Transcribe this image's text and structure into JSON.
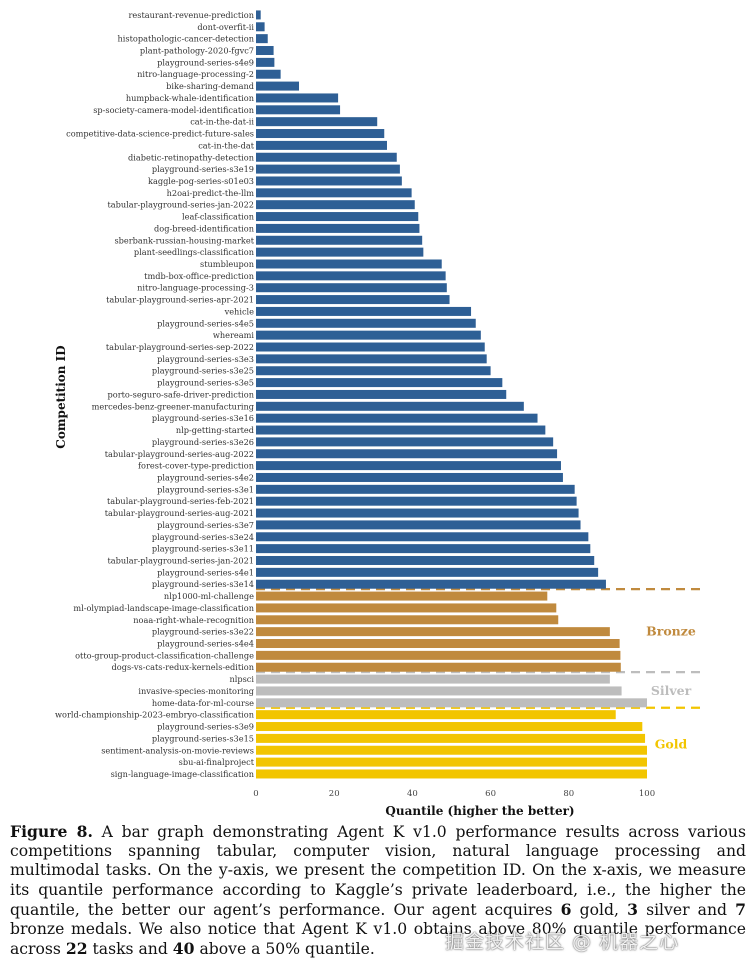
{
  "chart_data": {
    "type": "bar",
    "orientation": "horizontal",
    "xlabel": "Quantile (higher the better)",
    "ylabel": "Competition ID",
    "xlim": [
      0,
      100
    ],
    "xticks": [
      0,
      20,
      40,
      60,
      80,
      100
    ],
    "categories": [
      "restaurant-revenue-prediction",
      "dont-overfit-ii",
      "histopathologic-cancer-detection",
      "plant-pathology-2020-fgvc7",
      "playground-series-s4e9",
      "nitro-language-processing-2",
      "bike-sharing-demand",
      "humpback-whale-identification",
      "sp-society-camera-model-identification",
      "cat-in-the-dat-ii",
      "competitive-data-science-predict-future-sales",
      "cat-in-the-dat",
      "diabetic-retinopathy-detection",
      "playground-series-s3e19",
      "kaggle-pog-series-s01e03",
      "h2oai-predict-the-llm",
      "tabular-playground-series-jan-2022",
      "leaf-classification",
      "dog-breed-identification",
      "sberbank-russian-housing-market",
      "plant-seedlings-classification",
      "stumbleupon",
      "tmdb-box-office-prediction",
      "nitro-language-processing-3",
      "tabular-playground-series-apr-2021",
      "vehicle",
      "playground-series-s4e5",
      "whereami",
      "tabular-playground-series-sep-2022",
      "playground-series-s3e3",
      "playground-series-s3e25",
      "playground-series-s3e5",
      "porto-seguro-safe-driver-prediction",
      "mercedes-benz-greener-manufacturing",
      "playground-series-s3e16",
      "nlp-getting-started",
      "playground-series-s3e26",
      "tabular-playground-series-aug-2022",
      "forest-cover-type-prediction",
      "playground-series-s4e2",
      "playground-series-s3e1",
      "tabular-playground-series-feb-2021",
      "tabular-playground-series-aug-2021",
      "playground-series-s3e7",
      "playground-series-s3e24",
      "playground-series-s3e11",
      "tabular-playground-series-jan-2021",
      "playground-series-s4e1",
      "playground-series-s3e14",
      "nlp1000-ml-challenge",
      "ml-olympiad-landscape-image-classification",
      "noaa-right-whale-recognition",
      "playground-series-s3e22",
      "playground-series-s4e4",
      "otto-group-product-classification-challenge",
      "dogs-vs-cats-redux-kernels-edition",
      "nlpsci",
      "invasive-species-monitoring",
      "home-data-for-ml-course",
      "world-championship-2023-embryo-classification",
      "playground-series-s3e9",
      "playground-series-s3e15",
      "sentiment-analysis-on-movie-reviews",
      "sbu-ai-finalproject",
      "sign-language-image-classification"
    ],
    "values": [
      1.2,
      2.2,
      3.0,
      4.5,
      4.7,
      6.3,
      11.0,
      21.0,
      21.5,
      31.0,
      32.8,
      33.5,
      36.0,
      36.8,
      37.3,
      39.8,
      40.6,
      41.5,
      41.8,
      42.5,
      42.8,
      47.5,
      48.5,
      48.8,
      49.5,
      55.0,
      56.2,
      57.5,
      58.5,
      59.0,
      60.0,
      63.0,
      64.0,
      68.5,
      72.0,
      74.0,
      76.0,
      77.0,
      78.0,
      78.5,
      81.5,
      82.0,
      82.5,
      83.0,
      85.0,
      85.5,
      86.5,
      87.5,
      89.5,
      74.5,
      76.8,
      77.3,
      90.5,
      93.0,
      93.2,
      93.3,
      90.5,
      93.5,
      100.0,
      92.0,
      98.8,
      99.5,
      100.0,
      100.0,
      100.0
    ],
    "medal_groups": [
      {
        "name": "Bronze",
        "color": "#c08a3e",
        "first_index": 49,
        "last_index": 55
      },
      {
        "name": "Silver",
        "color": "#bdbdbd",
        "first_index": 56,
        "last_index": 58
      },
      {
        "name": "Gold",
        "color": "#f2c500",
        "first_index": 59,
        "last_index": 64
      }
    ],
    "default_color": "#2e5f95",
    "legend": "none",
    "grid": false
  },
  "caption": {
    "label": "Figure 8.",
    "text_1": "A bar graph demonstrating Agent K v1.0 performance results across various competitions spanning tabular, computer vision, natural language processing and multimodal tasks. On the y-axis, we present the competition ID. On the x-axis, we measure its quantile performance according to Kaggle’s private leaderboard, i.e., the higher the quantile, the better our agent’s performance. Our agent acquires",
    "gold_count": "6",
    "text_2": "gold,",
    "silver_count": "3",
    "text_3": "silver and",
    "bronze_count": "7",
    "text_4": "bronze medals. We also notice that Agent K v1.0 obtains above 80% quantile performance across",
    "above80_count": "22",
    "text_5": "tasks and",
    "above50_count": "40",
    "text_6": "above a 50% quantile."
  },
  "watermark": "掘金技术社区 @ 机器之心"
}
